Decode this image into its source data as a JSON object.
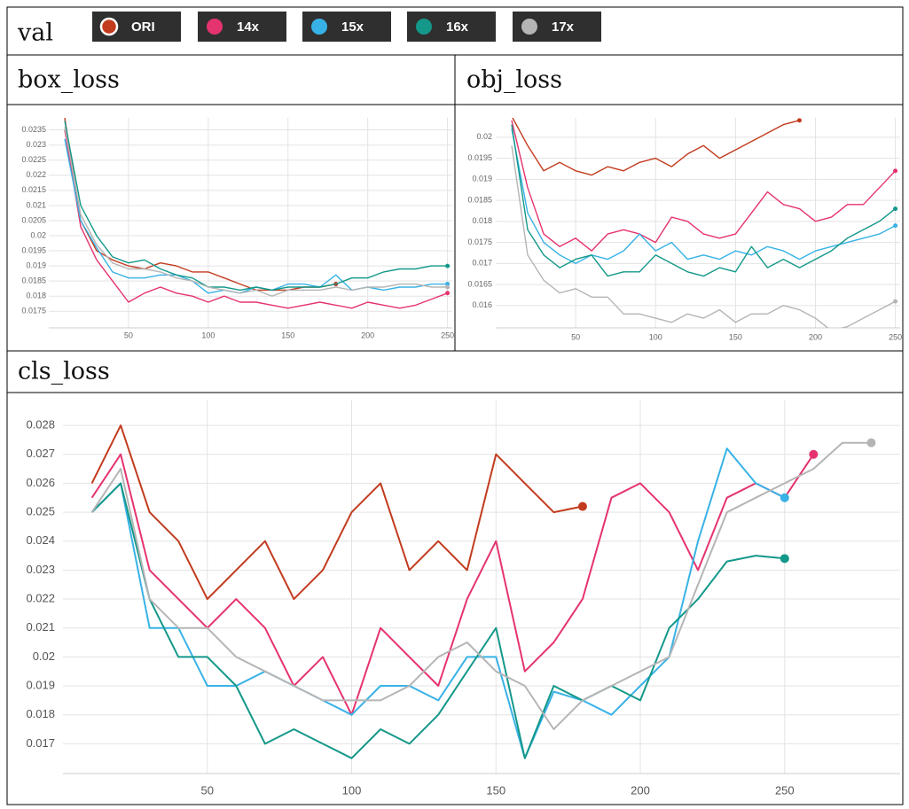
{
  "header": {
    "title": "val",
    "legend": [
      {
        "name": "ORI",
        "color": "#c23b1e"
      },
      {
        "name": "14x",
        "color": "#e5336f"
      },
      {
        "name": "15x",
        "color": "#38b2e6"
      },
      {
        "name": "16x",
        "color": "#14988a"
      },
      {
        "name": "17x",
        "color": "#b5b5b5"
      }
    ]
  },
  "chart_data": [
    {
      "type": "line",
      "title": "box_loss",
      "x": [
        10,
        20,
        30,
        40,
        50,
        60,
        70,
        80,
        90,
        100,
        110,
        120,
        130,
        140,
        150,
        160,
        170,
        180,
        190,
        200,
        210,
        220,
        230,
        240,
        250
      ],
      "series": [
        {
          "color": "#c23b1e",
          "values": [
            0.0239,
            0.0205,
            0.0195,
            0.0192,
            0.019,
            0.0189,
            0.0191,
            0.019,
            0.0188,
            0.0188,
            0.0186,
            0.0184,
            0.0182,
            0.0182,
            0.0182,
            0.0183,
            0.0183,
            0.0184,
            null,
            null,
            null,
            null,
            null,
            null,
            null
          ]
        },
        {
          "color": "#e5336f",
          "values": [
            0.0235,
            0.0203,
            0.0192,
            0.0185,
            0.0178,
            0.0181,
            0.0183,
            0.0181,
            0.018,
            0.0178,
            0.018,
            0.0178,
            0.0178,
            0.0177,
            0.0176,
            0.0177,
            0.0178,
            0.0177,
            0.0176,
            0.0178,
            0.0177,
            0.0176,
            0.0177,
            0.0179,
            0.0181
          ]
        },
        {
          "color": "#38b2e6",
          "values": [
            0.0232,
            0.0205,
            0.0196,
            0.0188,
            0.0186,
            0.0186,
            0.0187,
            0.0187,
            0.0185,
            0.0181,
            0.0182,
            0.0181,
            0.0183,
            0.0182,
            0.0184,
            0.0184,
            0.0183,
            0.0187,
            0.0182,
            0.0183,
            0.0182,
            0.0183,
            0.0183,
            0.0184,
            0.0184
          ]
        },
        {
          "color": "#14988a",
          "values": [
            0.0238,
            0.021,
            0.02,
            0.0193,
            0.0191,
            0.0192,
            0.0189,
            0.0187,
            0.0186,
            0.0183,
            0.0183,
            0.0182,
            0.0183,
            0.0182,
            0.0183,
            0.0183,
            0.0183,
            0.0184,
            0.0186,
            0.0186,
            0.0188,
            0.0189,
            0.0189,
            0.019,
            0.019
          ]
        },
        {
          "color": "#b5b5b5",
          "values": [
            0.0236,
            0.0207,
            0.0197,
            0.0191,
            0.0189,
            0.0189,
            0.0188,
            0.0186,
            0.0185,
            0.0183,
            0.0182,
            0.0181,
            0.0182,
            0.018,
            0.0182,
            0.0182,
            0.0182,
            0.0183,
            0.0182,
            0.0183,
            0.0183,
            0.0184,
            0.0184,
            0.0183,
            0.0183
          ]
        }
      ],
      "xlim": [
        0,
        253
      ],
      "xticks": [
        50,
        100,
        150,
        200,
        250
      ],
      "ylim": [
        0.01695,
        0.0239
      ],
      "yticks": [
        0.0175,
        0.018,
        0.0185,
        0.019,
        0.0195,
        0.02,
        0.0205,
        0.021,
        0.0215,
        0.022,
        0.0225,
        0.023,
        0.0235
      ],
      "grid": true
    },
    {
      "type": "line",
      "title": "obj_loss",
      "x": [
        10,
        20,
        30,
        40,
        50,
        60,
        70,
        80,
        90,
        100,
        110,
        120,
        130,
        140,
        150,
        160,
        170,
        180,
        190,
        200,
        210,
        220,
        230,
        240,
        250
      ],
      "series": [
        {
          "color": "#c23b1e",
          "values": [
            0.0205,
            0.0198,
            0.0192,
            0.0194,
            0.0192,
            0.0191,
            0.0193,
            0.0192,
            0.0194,
            0.0195,
            0.0193,
            0.0196,
            0.0198,
            0.0195,
            0.0197,
            0.0199,
            0.0201,
            0.0203,
            0.0204,
            null,
            null,
            null,
            null,
            null,
            null
          ]
        },
        {
          "color": "#e5336f",
          "values": [
            0.0204,
            0.0188,
            0.0177,
            0.0174,
            0.0176,
            0.0173,
            0.0177,
            0.0178,
            0.0177,
            0.0175,
            0.0181,
            0.018,
            0.0177,
            0.0176,
            0.0177,
            0.0182,
            0.0187,
            0.0184,
            0.0183,
            0.018,
            0.0181,
            0.0184,
            0.0184,
            0.0188,
            0.0192
          ]
        },
        {
          "color": "#38b2e6",
          "values": [
            0.0202,
            0.0182,
            0.0175,
            0.0172,
            0.017,
            0.0172,
            0.0171,
            0.0173,
            0.0177,
            0.0173,
            0.0175,
            0.0171,
            0.0172,
            0.0171,
            0.0173,
            0.0172,
            0.0174,
            0.0173,
            0.0171,
            0.0173,
            0.0174,
            0.0175,
            0.0176,
            0.0177,
            0.0179
          ]
        },
        {
          "color": "#14988a",
          "values": [
            0.0203,
            0.0178,
            0.0172,
            0.0169,
            0.0171,
            0.0172,
            0.0167,
            0.0168,
            0.0168,
            0.0172,
            0.017,
            0.0168,
            0.0167,
            0.0169,
            0.0168,
            0.0174,
            0.0169,
            0.0171,
            0.0169,
            0.0171,
            0.0173,
            0.0176,
            0.0178,
            0.018,
            0.0183
          ]
        },
        {
          "color": "#b5b5b5",
          "values": [
            0.0198,
            0.0172,
            0.0166,
            0.0163,
            0.0164,
            0.0162,
            0.0162,
            0.0158,
            0.0158,
            0.0157,
            0.0156,
            0.0158,
            0.0157,
            0.0159,
            0.0156,
            0.0158,
            0.0158,
            0.016,
            0.0159,
            0.0157,
            0.0154,
            0.0155,
            0.0157,
            0.0159,
            0.0161
          ]
        }
      ],
      "xlim": [
        0,
        253
      ],
      "xticks": [
        50,
        100,
        150,
        200,
        250
      ],
      "ylim": [
        0.01547,
        0.02046
      ],
      "yticks": [
        0.016,
        0.0165,
        0.017,
        0.0175,
        0.018,
        0.0185,
        0.019,
        0.0195,
        0.02
      ],
      "grid": true
    },
    {
      "type": "line",
      "title": "cls_loss",
      "x": [
        10,
        20,
        30,
        40,
        50,
        60,
        70,
        80,
        90,
        100,
        110,
        120,
        130,
        140,
        150,
        160,
        170,
        180,
        190,
        200,
        210,
        220,
        230,
        240,
        250,
        260,
        270,
        280
      ],
      "series": [
        {
          "color": "#c23b1e",
          "values": [
            0.026,
            0.028,
            0.025,
            0.024,
            0.022,
            0.023,
            0.024,
            0.022,
            0.023,
            0.025,
            0.026,
            0.023,
            0.024,
            0.023,
            0.027,
            0.026,
            0.025,
            0.0252,
            null,
            null,
            null,
            null,
            null,
            null,
            null,
            null,
            null,
            null
          ]
        },
        {
          "color": "#e5336f",
          "values": [
            0.0255,
            0.027,
            0.023,
            0.022,
            0.021,
            0.022,
            0.021,
            0.019,
            0.02,
            0.018,
            0.021,
            0.02,
            0.019,
            0.022,
            0.024,
            0.0195,
            0.0205,
            0.022,
            0.0255,
            0.026,
            0.025,
            0.023,
            0.0255,
            0.026,
            0.0255,
            0.027,
            null,
            null
          ]
        },
        {
          "color": "#38b2e6",
          "values": [
            0.025,
            0.026,
            0.021,
            0.021,
            0.019,
            0.019,
            0.0195,
            0.019,
            0.0185,
            0.018,
            0.019,
            0.019,
            0.0185,
            0.02,
            0.02,
            0.0165,
            0.0188,
            0.0185,
            0.018,
            0.019,
            0.02,
            0.024,
            0.0272,
            0.026,
            0.0255,
            null,
            null,
            null
          ]
        },
        {
          "color": "#14988a",
          "values": [
            0.025,
            0.026,
            0.022,
            0.02,
            0.02,
            0.019,
            0.017,
            0.0175,
            0.017,
            0.0165,
            0.0175,
            0.017,
            0.018,
            0.0195,
            0.021,
            0.0165,
            0.019,
            0.0185,
            0.019,
            0.0185,
            0.021,
            0.022,
            0.0233,
            0.0235,
            0.0234,
            null,
            null,
            null
          ]
        },
        {
          "color": "#b5b5b5",
          "values": [
            0.025,
            0.0265,
            0.022,
            0.021,
            0.021,
            0.02,
            0.0195,
            0.019,
            0.0185,
            0.0185,
            0.0185,
            0.019,
            0.02,
            0.0205,
            0.0195,
            0.019,
            0.0175,
            0.0185,
            0.019,
            0.0195,
            0.02,
            0.0225,
            0.025,
            0.0255,
            0.026,
            0.0265,
            0.0274,
            0.0274
          ]
        }
      ],
      "xlim": [
        0,
        290
      ],
      "xticks": [
        50,
        100,
        150,
        200,
        250
      ],
      "ylim": [
        0.01597,
        0.02886
      ],
      "yticks": [
        0.017,
        0.018,
        0.019,
        0.02,
        0.021,
        0.022,
        0.023,
        0.024,
        0.025,
        0.026,
        0.027,
        0.028
      ],
      "grid": true
    }
  ]
}
